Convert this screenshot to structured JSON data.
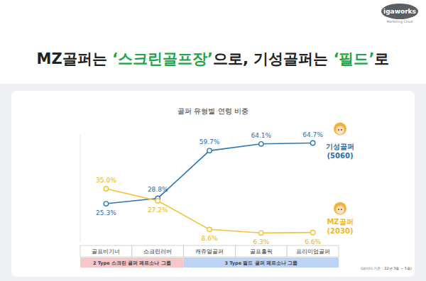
{
  "header": {
    "logo": "igaworks",
    "logo_sub": "Marketing Cloud",
    "title_parts": [
      {
        "text": "MZ골퍼는 ",
        "highlight": false
      },
      {
        "text": "‘스크린골프장’",
        "highlight": true
      },
      {
        "text": "으로, 기성골퍼는 ",
        "highlight": false
      },
      {
        "text": "‘필드’",
        "highlight": true
      },
      {
        "text": "로",
        "highlight": false
      }
    ]
  },
  "chart_data": {
    "type": "line",
    "title": "골퍼 유형별 연령 비중",
    "categories": [
      "골프비기너",
      "스크린러버",
      "캐쥬얼골퍼",
      "골프홀릭",
      "프리미엄골퍼"
    ],
    "series": [
      {
        "name": "기성골퍼 (5060)",
        "color": "#2b78b5",
        "marker": "circle",
        "values": [
          25.3,
          28.8,
          59.7,
          64.1,
          64.7
        ],
        "value_labels": [
          "25.3%",
          "28.8%",
          "59.7%",
          "64.1%",
          "64.7%"
        ]
      },
      {
        "name": "MZ골퍼 (2030)",
        "color": "#f2c230",
        "marker": "circle",
        "values": [
          35.0,
          27.2,
          8.6,
          6.3,
          6.6
        ],
        "value_labels": [
          "35.0%",
          "27.2%",
          "8.6%",
          "6.3%",
          "6.6%"
        ]
      }
    ],
    "ylim": [
      0,
      70
    ],
    "tick_labels": "x",
    "data_labels": true,
    "groups": [
      {
        "label": "2 Type 스크린 골퍼 페르소나 그룹",
        "count": 2,
        "color": "#f7c6c6"
      },
      {
        "label": "3 Type 필드 골퍼 페르소나 그룹",
        "count": 3,
        "color": "#bdd3f6"
      }
    ],
    "note": "(데이터 기준 : 22년 3월 ~ 5월)"
  }
}
